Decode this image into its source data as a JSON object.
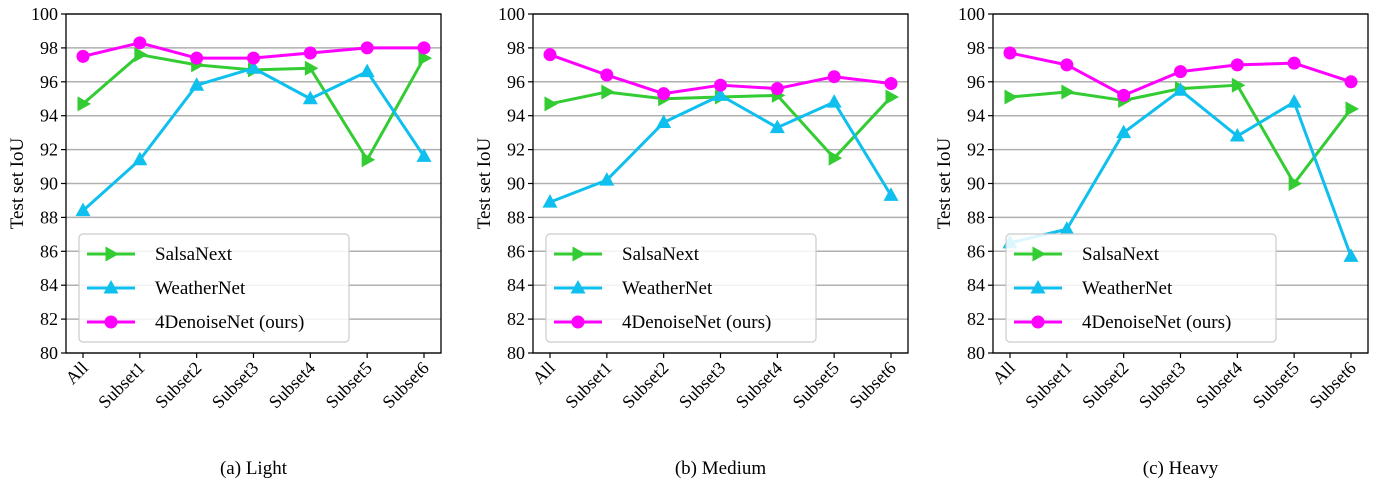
{
  "colors": {
    "SalsaNext": "#33cc33",
    "WeatherNet": "#0fbfee",
    "4DenoiseNet (ours)": "#ff00ff",
    "grid": "#b0b0b0",
    "axis": "#000000"
  },
  "chart_data": [
    {
      "type": "line",
      "caption": "(a) Light",
      "ylabel": "Test set IoU",
      "ylim": [
        80,
        100
      ],
      "yticks": [
        "80",
        "82",
        "84",
        "86",
        "88",
        "90",
        "92",
        "94",
        "96",
        "98",
        "100"
      ],
      "categories": [
        "All",
        "Subset1",
        "Subset2",
        "Subset3",
        "Subset4",
        "Subset5",
        "Subset6"
      ],
      "grid": "horizontal",
      "legend_position": "lower-center",
      "series": [
        {
          "name": "SalsaNext",
          "marker": "triangle-right",
          "values": [
            94.7,
            97.6,
            97.0,
            96.7,
            96.8,
            91.4,
            97.4
          ]
        },
        {
          "name": "WeatherNet",
          "marker": "triangle-up",
          "values": [
            88.4,
            91.4,
            95.8,
            96.8,
            95.0,
            96.6,
            91.6
          ]
        },
        {
          "name": "4DenoiseNet (ours)",
          "marker": "circle",
          "values": [
            97.5,
            98.3,
            97.4,
            97.4,
            97.7,
            98.0,
            98.0
          ]
        }
      ]
    },
    {
      "type": "line",
      "caption": "(b) Medium",
      "ylabel": "Test set IoU",
      "ylim": [
        80,
        100
      ],
      "yticks": [
        "80",
        "82",
        "84",
        "86",
        "88",
        "90",
        "92",
        "94",
        "96",
        "98",
        "100"
      ],
      "categories": [
        "All",
        "Subset1",
        "Subset2",
        "Subset3",
        "Subset4",
        "Subset5",
        "Subset6"
      ],
      "grid": "horizontal",
      "legend_position": "lower-center",
      "series": [
        {
          "name": "SalsaNext",
          "marker": "triangle-right",
          "values": [
            94.7,
            95.4,
            95.0,
            95.1,
            95.2,
            91.5,
            95.1
          ]
        },
        {
          "name": "WeatherNet",
          "marker": "triangle-up",
          "values": [
            88.9,
            90.2,
            93.6,
            95.2,
            93.3,
            94.8,
            89.3
          ]
        },
        {
          "name": "4DenoiseNet (ours)",
          "marker": "circle",
          "values": [
            97.6,
            96.4,
            95.3,
            95.8,
            95.6,
            96.3,
            95.9
          ]
        }
      ]
    },
    {
      "type": "line",
      "caption": "(c) Heavy",
      "ylabel": "Test set IoU",
      "ylim": [
        80,
        100
      ],
      "yticks": [
        "80",
        "82",
        "84",
        "86",
        "88",
        "90",
        "92",
        "94",
        "96",
        "98",
        "100"
      ],
      "categories": [
        "All",
        "Subset1",
        "Subset2",
        "Subset3",
        "Subset4",
        "Subset5",
        "Subset6"
      ],
      "grid": "horizontal",
      "legend_position": "lower-center",
      "series": [
        {
          "name": "SalsaNext",
          "marker": "triangle-right",
          "values": [
            95.1,
            95.4,
            94.9,
            95.6,
            95.8,
            90.0,
            94.4
          ]
        },
        {
          "name": "WeatherNet",
          "marker": "triangle-up",
          "values": [
            86.5,
            87.3,
            93.0,
            95.5,
            92.8,
            94.8,
            85.7
          ]
        },
        {
          "name": "4DenoiseNet (ours)",
          "marker": "circle",
          "values": [
            97.7,
            97.0,
            95.2,
            96.6,
            97.0,
            97.1,
            96.0
          ]
        }
      ]
    }
  ]
}
